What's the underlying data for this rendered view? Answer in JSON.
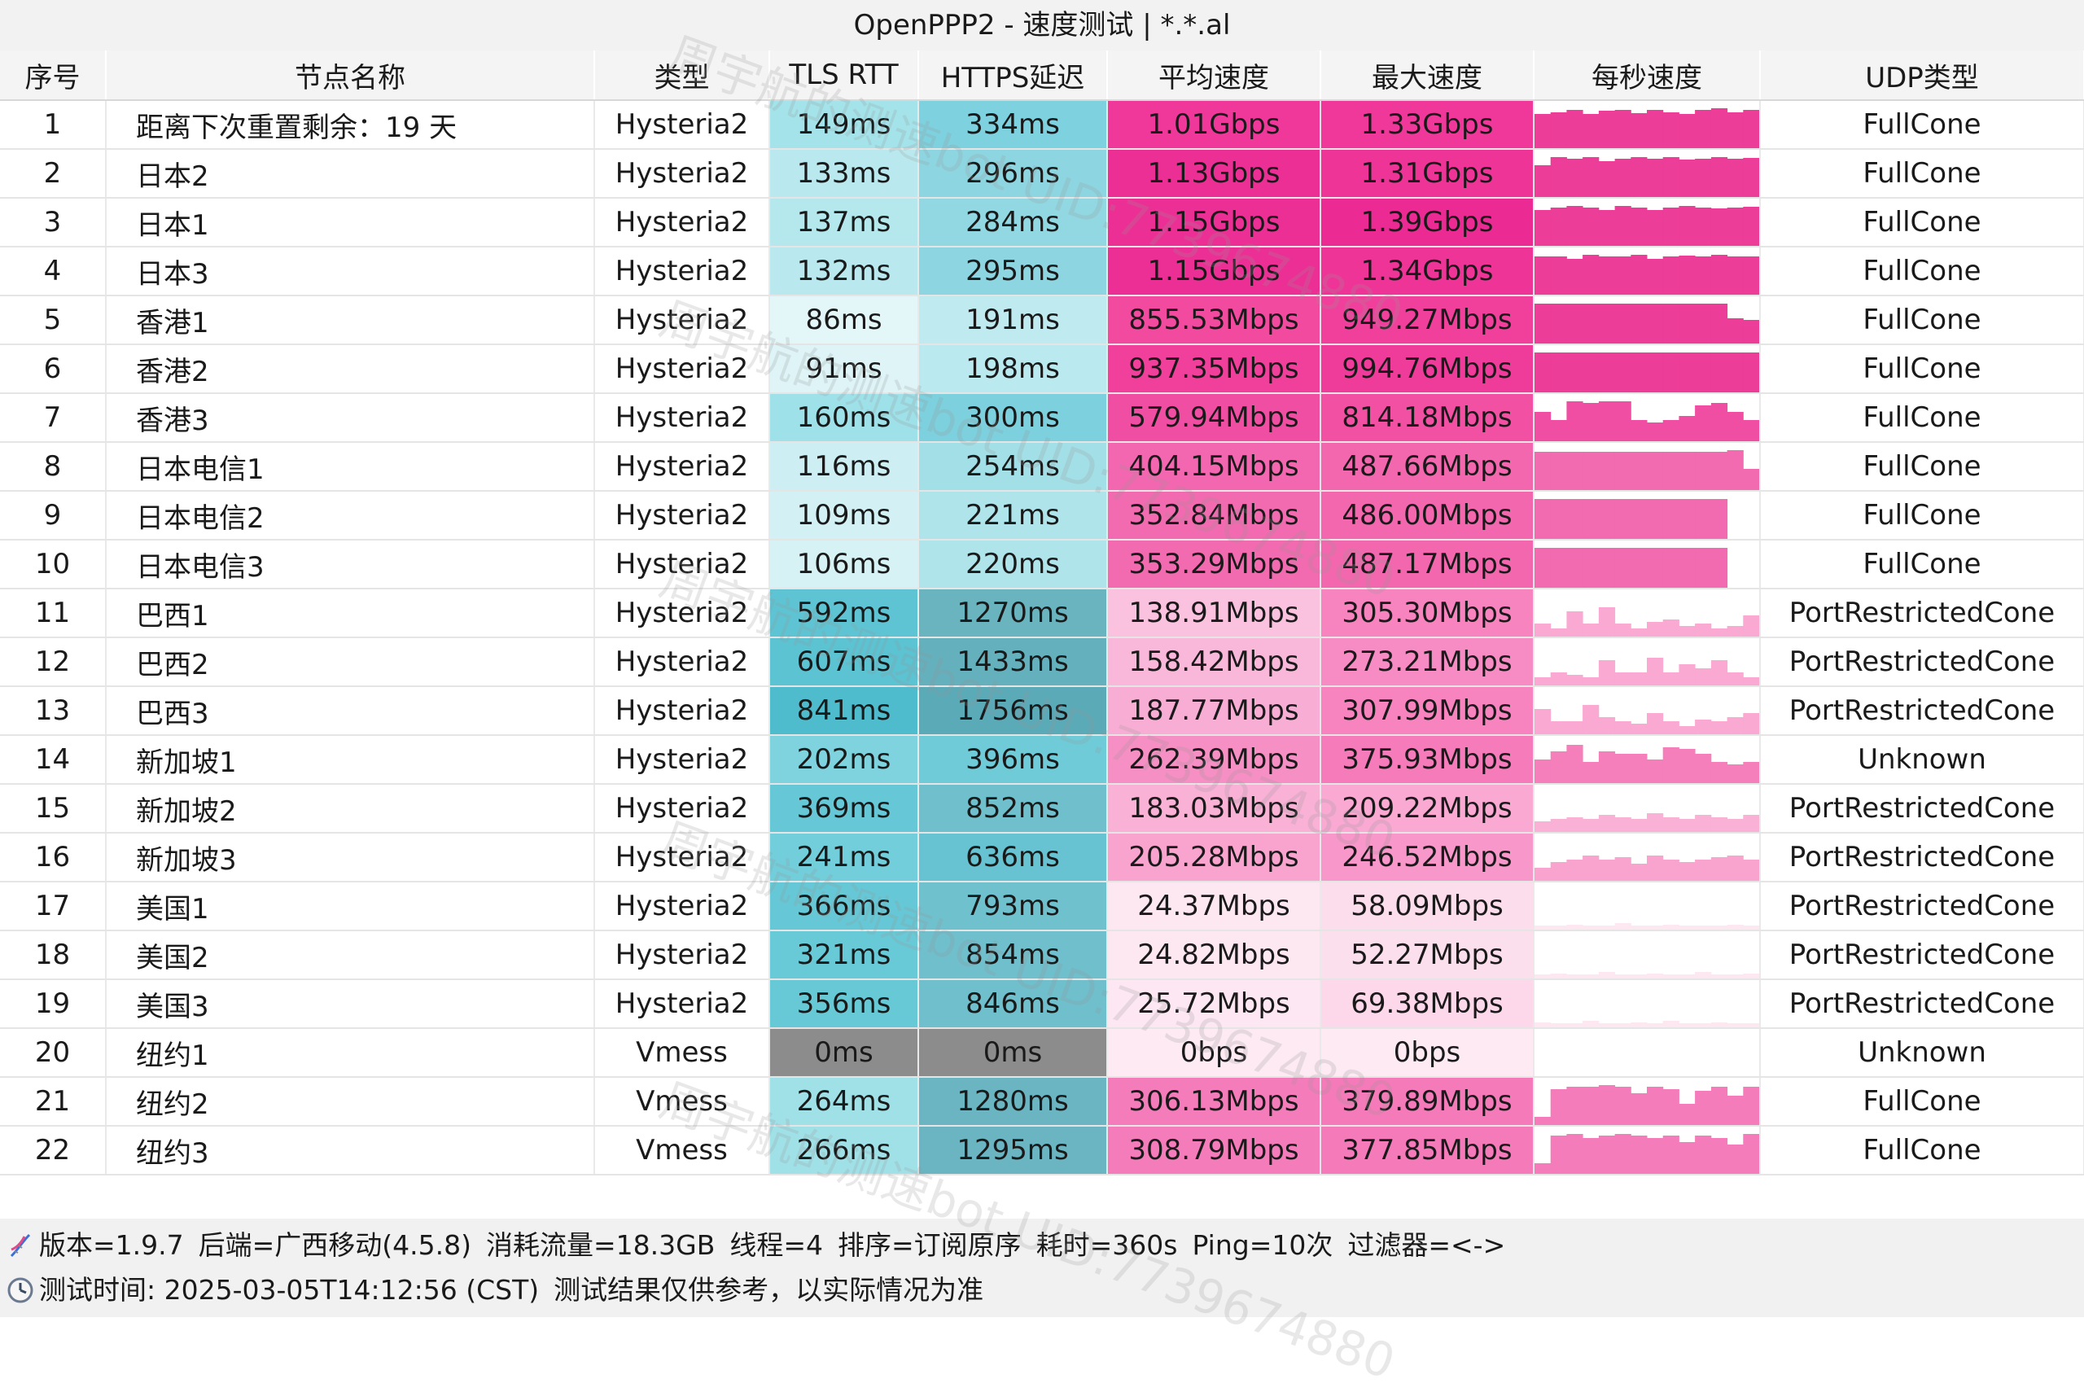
{
  "window": {
    "title": "OpenPPP2 - 速度测试 | *.*.al"
  },
  "table": {
    "headers": [
      "序号",
      "节点名称",
      "类型",
      "TLS RTT",
      "HTTPS延迟",
      "平均速度",
      "最大速度",
      "每秒速度",
      "UDP类型"
    ],
    "rows": [
      {
        "idx": "1",
        "name": "距离下次重置剩余：19 天",
        "type": "Hysteria2",
        "tls": "149ms",
        "https": "334ms",
        "avg": "1.01Gbps",
        "max": "1.33Gbps",
        "udp": "FullCone",
        "tls_bg": "#a4e3ea",
        "https_bg": "#7ed1de",
        "avg_bg": "#f0389a",
        "max_bg": "#f0389a",
        "spark_color": "#ec3d98",
        "spark": [
          0.8,
          0.85,
          0.9,
          0.8,
          0.88,
          0.9,
          0.82,
          0.9,
          0.85,
          0.8,
          0.9,
          0.95,
          0.85,
          0.9
        ]
      },
      {
        "idx": "2",
        "name": "日本2",
        "type": "Hysteria2",
        "tls": "133ms",
        "https": "296ms",
        "avg": "1.13Gbps",
        "max": "1.31Gbps",
        "udp": "FullCone",
        "tls_bg": "#b9e9ee",
        "https_bg": "#8dd6e1",
        "avg_bg": "#ec2f95",
        "max_bg": "#ee3597",
        "spark_color": "#ec3d98",
        "spark": [
          0.75,
          0.95,
          0.9,
          0.95,
          0.85,
          0.9,
          0.95,
          0.9,
          0.95,
          0.88,
          0.9,
          0.95,
          0.9,
          0.92
        ]
      },
      {
        "idx": "3",
        "name": "日本1",
        "type": "Hysteria2",
        "tls": "137ms",
        "https": "284ms",
        "avg": "1.15Gbps",
        "max": "1.39Gbps",
        "udp": "FullCone",
        "tls_bg": "#b4e8ed",
        "https_bg": "#92d8e2",
        "avg_bg": "#ec2f95",
        "max_bg": "#eb2b93",
        "spark_color": "#ec3d98",
        "spark": [
          0.85,
          0.9,
          0.95,
          0.9,
          0.85,
          0.95,
          0.9,
          0.85,
          0.9,
          0.95,
          0.9,
          0.88,
          0.9,
          0.92
        ]
      },
      {
        "idx": "4",
        "name": "日本3",
        "type": "Hysteria2",
        "tls": "132ms",
        "https": "295ms",
        "avg": "1.15Gbps",
        "max": "1.34Gbps",
        "udp": "FullCone",
        "tls_bg": "#b9e9ee",
        "https_bg": "#8dd6e1",
        "avg_bg": "#ec2f95",
        "max_bg": "#ee3597",
        "spark_color": "#ec3d98",
        "spark": [
          0.9,
          0.9,
          0.85,
          0.95,
          0.9,
          0.9,
          0.95,
          0.85,
          0.9,
          0.92,
          0.9,
          0.95,
          0.9,
          0.9
        ]
      },
      {
        "idx": "5",
        "name": "香港1",
        "type": "Hysteria2",
        "tls": "86ms",
        "https": "191ms",
        "avg": "855.53Mbps",
        "max": "949.27Mbps",
        "udp": "FullCone",
        "tls_bg": "#e3f6f8",
        "https_bg": "#bfeaf0",
        "avg_bg": "#f14a9f",
        "max_bg": "#f0409c",
        "spark_color": "#ec3d98",
        "spark": [
          0.95,
          0.95,
          0.95,
          0.95,
          0.95,
          0.95,
          0.95,
          0.95,
          0.95,
          0.95,
          0.95,
          0.95,
          0.6,
          0.55
        ]
      },
      {
        "idx": "6",
        "name": "香港2",
        "type": "Hysteria2",
        "tls": "91ms",
        "https": "198ms",
        "avg": "937.35Mbps",
        "max": "994.76Mbps",
        "udp": "FullCone",
        "tls_bg": "#def4f7",
        "https_bg": "#bae9ef",
        "avg_bg": "#f0409c",
        "max_bg": "#ef3c9a",
        "spark_color": "#ec3d98",
        "spark": [
          0.95,
          0.95,
          0.95,
          0.95,
          0.95,
          0.95,
          0.95,
          0.95,
          0.95,
          0.95,
          0.95,
          0.95,
          0.95,
          0.95
        ]
      },
      {
        "idx": "7",
        "name": "香港3",
        "type": "Hysteria2",
        "tls": "160ms",
        "https": "300ms",
        "avg": "579.94Mbps",
        "max": "814.18Mbps",
        "udp": "FullCone",
        "tls_bg": "#9ee1e8",
        "https_bg": "#7dd0dd",
        "avg_bg": "#f04ea2",
        "max_bg": "#f150a3",
        "spark_color": "#f04ea2",
        "spark": [
          0.7,
          0.5,
          0.95,
          0.9,
          0.95,
          0.95,
          0.5,
          0.45,
          0.5,
          0.6,
          0.85,
          0.9,
          0.7,
          0.5
        ]
      },
      {
        "idx": "8",
        "name": "日本电信1",
        "type": "Hysteria2",
        "tls": "116ms",
        "https": "254ms",
        "avg": "404.15Mbps",
        "max": "487.66Mbps",
        "udp": "FullCone",
        "tls_bg": "#cdeff3",
        "https_bg": "#a3dfe7",
        "avg_bg": "#f366b0",
        "max_bg": "#f267ae",
        "spark_color": "#f26aaf",
        "spark": [
          0.9,
          0.9,
          0.9,
          0.9,
          0.9,
          0.9,
          0.9,
          0.9,
          0.9,
          0.9,
          0.9,
          0.9,
          0.95,
          0.5
        ]
      },
      {
        "idx": "9",
        "name": "日本电信2",
        "type": "Hysteria2",
        "tls": "109ms",
        "https": "221ms",
        "avg": "352.84Mbps",
        "max": "486.00Mbps",
        "udp": "FullCone",
        "tls_bg": "#d3f1f5",
        "https_bg": "#b0e4eb",
        "avg_bg": "#f26aaf",
        "max_bg": "#f267ae",
        "spark_color": "#f26aaf",
        "spark": [
          0.95,
          0.95,
          0.95,
          0.95,
          0.95,
          0.95,
          0.95,
          0.95,
          0.95,
          0.95,
          0.95,
          0.95,
          0,
          0
        ]
      },
      {
        "idx": "10",
        "name": "日本电信3",
        "type": "Hysteria2",
        "tls": "106ms",
        "https": "220ms",
        "avg": "353.29Mbps",
        "max": "487.17Mbps",
        "udp": "FullCone",
        "tls_bg": "#d6f2f5",
        "https_bg": "#b0e4eb",
        "avg_bg": "#f26aaf",
        "max_bg": "#f267ae",
        "spark_color": "#f26aaf",
        "spark": [
          0.95,
          0.95,
          0.95,
          0.95,
          0.95,
          0.95,
          0.95,
          0.95,
          0.95,
          0.95,
          0.95,
          0.95,
          0,
          0
        ]
      },
      {
        "idx": "11",
        "name": "巴西1",
        "type": "Hysteria2",
        "tls": "592ms",
        "https": "1270ms",
        "avg": "138.91Mbps",
        "max": "305.30Mbps",
        "udp": "PortRestrictedCone",
        "tls_bg": "#5ec4d3",
        "https_bg": "#6ab4c0",
        "avg_bg": "#fac2de",
        "max_bg": "#f784bf",
        "spark_color": "#f9a9d2",
        "spark": [
          0.3,
          0.2,
          0.6,
          0.3,
          0.7,
          0.3,
          0.2,
          0.35,
          0.4,
          0.25,
          0.3,
          0.2,
          0.25,
          0.5
        ]
      },
      {
        "idx": "12",
        "name": "巴西2",
        "type": "Hysteria2",
        "tls": "607ms",
        "https": "1433ms",
        "avg": "158.42Mbps",
        "max": "273.21Mbps",
        "udp": "PortRestrictedCone",
        "tls_bg": "#5bc3d2",
        "https_bg": "#64b0bd",
        "avg_bg": "#f9b8d9",
        "max_bg": "#f78cc4",
        "spark_color": "#f9a9d2",
        "spark": [
          0.2,
          0.3,
          0.25,
          0.2,
          0.6,
          0.3,
          0.3,
          0.65,
          0.3,
          0.5,
          0.4,
          0.6,
          0.3,
          0.2
        ]
      },
      {
        "idx": "13",
        "name": "巴西3",
        "type": "Hysteria2",
        "tls": "841ms",
        "https": "1756ms",
        "avg": "187.77Mbps",
        "max": "307.99Mbps",
        "udp": "PortRestrictedCone",
        "tls_bg": "#4fbccd",
        "https_bg": "#5aaab8",
        "avg_bg": "#f8aed4",
        "max_bg": "#f784bf",
        "spark_color": "#f9a9d2",
        "spark": [
          0.6,
          0.3,
          0.3,
          0.7,
          0.4,
          0.3,
          0.25,
          0.5,
          0.3,
          0.2,
          0.35,
          0.3,
          0.4,
          0.5
        ]
      },
      {
        "idx": "14",
        "name": "新加坡1",
        "type": "Hysteria2",
        "tls": "202ms",
        "https": "396ms",
        "avg": "262.39Mbps",
        "max": "375.93Mbps",
        "udp": "Unknown",
        "tls_bg": "#7fd3de",
        "https_bg": "#6fcbd8",
        "avg_bg": "#f68fc4",
        "max_bg": "#f57bba",
        "spark_color": "#f47fbb",
        "spark": [
          0.55,
          0.75,
          0.9,
          0.5,
          0.75,
          0.7,
          0.7,
          0.55,
          0.85,
          0.8,
          0.7,
          0.5,
          0.45,
          0.5
        ]
      },
      {
        "idx": "15",
        "name": "新加坡2",
        "type": "Hysteria2",
        "tls": "369ms",
        "https": "852ms",
        "avg": "183.03Mbps",
        "max": "209.22Mbps",
        "udp": "PortRestrictedCone",
        "tls_bg": "#66c8d6",
        "https_bg": "#6fbfcc",
        "avg_bg": "#f9b1d6",
        "max_bg": "#f9a9d2",
        "spark_color": "#f9b1d6",
        "spark": [
          0.25,
          0.3,
          0.35,
          0.3,
          0.4,
          0.35,
          0.3,
          0.45,
          0.35,
          0.3,
          0.4,
          0.35,
          0.3,
          0.4
        ]
      },
      {
        "idx": "16",
        "name": "新加坡3",
        "type": "Hysteria2",
        "tls": "241ms",
        "https": "636ms",
        "avg": "205.28Mbps",
        "max": "246.52Mbps",
        "udp": "PortRestrictedCone",
        "tls_bg": "#72ceda",
        "https_bg": "#67c3d1",
        "avg_bg": "#f8a4cf",
        "max_bg": "#f897ca",
        "spark_color": "#f8a4cf",
        "spark": [
          0.3,
          0.45,
          0.5,
          0.6,
          0.5,
          0.55,
          0.4,
          0.6,
          0.5,
          0.45,
          0.5,
          0.55,
          0.6,
          0.5
        ]
      },
      {
        "idx": "17",
        "name": "美国1",
        "type": "Hysteria2",
        "tls": "366ms",
        "https": "793ms",
        "avg": "24.37Mbps",
        "max": "58.09Mbps",
        "udp": "PortRestrictedCone",
        "tls_bg": "#66c8d6",
        "https_bg": "#70c1ce",
        "avg_bg": "#fde8f2",
        "max_bg": "#fcddec",
        "spark_color": "#fde8f2",
        "spark": [
          0.1,
          0.1,
          0.12,
          0.1,
          0.1,
          0.15,
          0.1,
          0.1,
          0.12,
          0.1,
          0.1,
          0.1,
          0.12,
          0.1
        ]
      },
      {
        "idx": "18",
        "name": "美国2",
        "type": "Hysteria2",
        "tls": "321ms",
        "https": "854ms",
        "avg": "24.82Mbps",
        "max": "52.27Mbps",
        "udp": "PortRestrictedCone",
        "tls_bg": "#69cad7",
        "https_bg": "#6fbfcc",
        "avg_bg": "#fde8f2",
        "max_bg": "#fcdfed",
        "spark_color": "#fde8f2",
        "spark": [
          0.1,
          0.12,
          0.1,
          0.1,
          0.15,
          0.1,
          0.1,
          0.12,
          0.1,
          0.1,
          0.15,
          0.1,
          0.1,
          0.12
        ]
      },
      {
        "idx": "19",
        "name": "美国3",
        "type": "Hysteria2",
        "tls": "356ms",
        "https": "846ms",
        "avg": "25.72Mbps",
        "max": "69.38Mbps",
        "udp": "PortRestrictedCone",
        "tls_bg": "#67c9d6",
        "https_bg": "#6fbfcc",
        "avg_bg": "#fde7f2",
        "max_bg": "#fcd8ea",
        "spark_color": "#fde8f2",
        "spark": [
          0.12,
          0.1,
          0.1,
          0.15,
          0.1,
          0.1,
          0.12,
          0.1,
          0.15,
          0.1,
          0.1,
          0.12,
          0.1,
          0.1
        ]
      },
      {
        "idx": "20",
        "name": "纽约1",
        "type": "Vmess",
        "tls": "0ms",
        "https": "0ms",
        "avg": "0bps",
        "max": "0bps",
        "udp": "Unknown",
        "tls_bg": "#8c8c8c",
        "https_bg": "#8c8c8c",
        "avg_bg": "#fdeaf3",
        "max_bg": "#fdeaf3",
        "spark_color": "#ffffff",
        "spark": [
          0,
          0,
          0,
          0,
          0,
          0,
          0,
          0,
          0,
          0,
          0,
          0,
          0,
          0
        ]
      },
      {
        "idx": "21",
        "name": "纽约2",
        "type": "Vmess",
        "tls": "264ms",
        "https": "1280ms",
        "avg": "306.13Mbps",
        "max": "379.89Mbps",
        "udp": "FullCone",
        "tls_bg": "#a0e1e8",
        "https_bg": "#6bb4c1",
        "avg_bg": "#f47cba",
        "max_bg": "#f47ab9",
        "spark_color": "#f47cba",
        "spark": [
          0.2,
          0.85,
          0.9,
          0.9,
          0.95,
          0.9,
          0.75,
          0.9,
          0.85,
          0.5,
          0.8,
          0.9,
          0.7,
          0.9
        ]
      },
      {
        "idx": "22",
        "name": "纽约3",
        "type": "Vmess",
        "tls": "266ms",
        "https": "1295ms",
        "avg": "308.79Mbps",
        "max": "377.85Mbps",
        "udp": "FullCone",
        "tls_bg": "#a0e1e8",
        "https_bg": "#6bb4c1",
        "avg_bg": "#f47cba",
        "max_bg": "#f47ab9",
        "spark_color": "#f47cba",
        "spark": [
          0.25,
          0.9,
          0.95,
          0.85,
          0.9,
          0.95,
          0.9,
          0.85,
          0.9,
          0.75,
          0.9,
          0.85,
          0.7,
          0.95
        ]
      }
    ]
  },
  "footer": {
    "line1": [
      "版本=1.9.7",
      "后端=广西移动(4.5.8)",
      "消耗流量=18.3GB",
      "线程=4",
      "排序=订阅原序",
      "耗时=360s",
      "Ping=10次",
      "过滤器=<->"
    ],
    "line2_time": "测试时间: 2025-03-05T14:12:56 (CST)",
    "line2_note": "测试结果仅供参考，以实际情况为准"
  },
  "watermark": {
    "text": "周宇航的测速bot UID:7739674880"
  }
}
